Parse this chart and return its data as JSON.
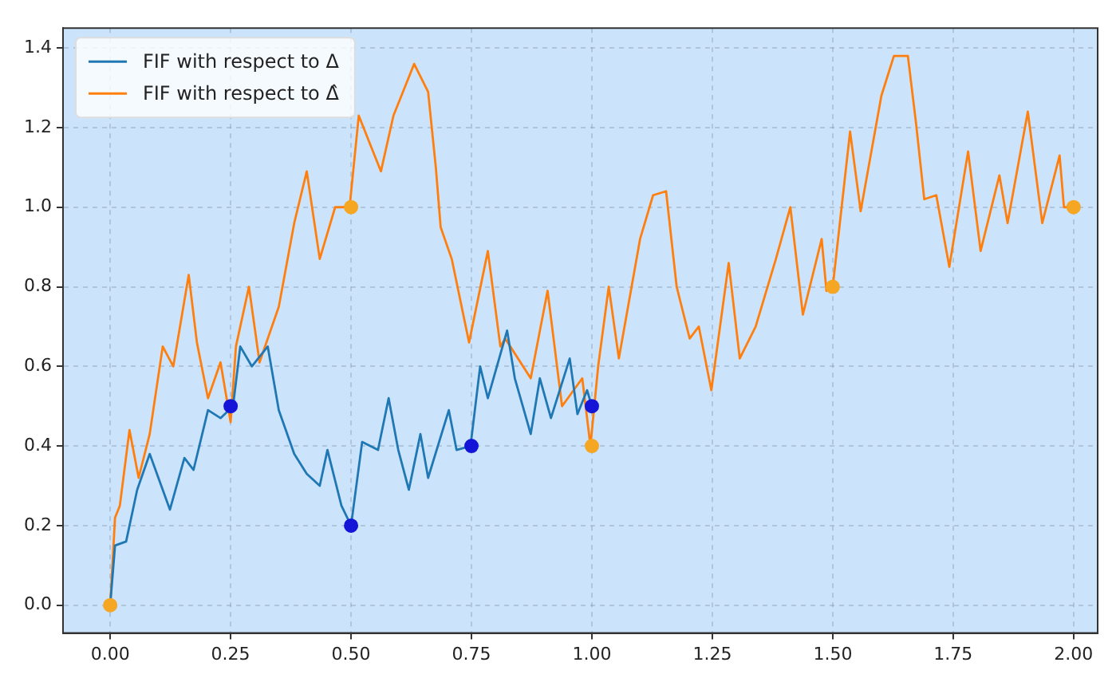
{
  "chart_data": {
    "type": "line",
    "series": [
      {
        "name": "FIF with respect to Δ",
        "marker": "none",
        "color": "#1f77b4",
        "x": [
          0,
          0.01,
          0.033,
          0.056,
          0.082,
          0.124,
          0.154,
          0.173,
          0.203,
          0.229,
          0.255,
          0.27,
          0.294,
          0.327,
          0.35,
          0.382,
          0.408,
          0.435,
          0.451,
          0.48,
          0.5,
          0.523,
          0.556,
          0.578,
          0.598,
          0.62,
          0.644,
          0.66,
          0.703,
          0.719,
          0.748,
          0.768,
          0.784,
          0.824,
          0.84,
          0.873,
          0.892,
          0.915,
          0.954,
          0.97,
          0.99,
          1.0
        ],
        "values": [
          0,
          0.15,
          0.16,
          0.29,
          0.38,
          0.24,
          0.37,
          0.34,
          0.49,
          0.47,
          0.5,
          0.65,
          0.6,
          0.65,
          0.49,
          0.38,
          0.33,
          0.3,
          0.39,
          0.25,
          0.2,
          0.41,
          0.39,
          0.52,
          0.39,
          0.29,
          0.43,
          0.32,
          0.49,
          0.39,
          0.4,
          0.6,
          0.52,
          0.69,
          0.57,
          0.43,
          0.57,
          0.47,
          0.62,
          0.48,
          0.54,
          0.5
        ]
      },
      {
        "name": "FIF with respect to Δ̂",
        "marker": "none",
        "color": "#ff7f0e",
        "x": [
          0,
          0.01,
          0.02,
          0.04,
          0.059,
          0.082,
          0.109,
          0.131,
          0.163,
          0.18,
          0.203,
          0.229,
          0.25,
          0.261,
          0.288,
          0.31,
          0.35,
          0.382,
          0.408,
          0.435,
          0.467,
          0.497,
          0.516,
          0.562,
          0.588,
          0.631,
          0.66,
          0.676,
          0.686,
          0.709,
          0.745,
          0.784,
          0.81,
          0.82,
          0.873,
          0.908,
          0.938,
          0.98,
          0.997,
          1.013,
          1.035,
          1.056,
          1.1,
          1.127,
          1.154,
          1.176,
          1.203,
          1.222,
          1.248,
          1.284,
          1.307,
          1.34,
          1.382,
          1.412,
          1.438,
          1.477,
          1.487,
          1.5,
          1.536,
          1.558,
          1.601,
          1.627,
          1.656,
          1.673,
          1.69,
          1.715,
          1.742,
          1.781,
          1.807,
          1.846,
          1.863,
          1.905,
          1.935,
          1.971,
          1.98,
          2.0
        ],
        "values": [
          0,
          0.22,
          0.25,
          0.44,
          0.32,
          0.43,
          0.65,
          0.6,
          0.83,
          0.66,
          0.52,
          0.61,
          0.46,
          0.65,
          0.8,
          0.61,
          0.75,
          0.96,
          1.09,
          0.87,
          1.0,
          1.0,
          1.23,
          1.09,
          1.23,
          1.36,
          1.29,
          1.1,
          0.95,
          0.87,
          0.66,
          0.89,
          0.65,
          0.67,
          0.57,
          0.79,
          0.5,
          0.57,
          0.4,
          0.6,
          0.8,
          0.62,
          0.92,
          1.03,
          1.04,
          0.8,
          0.67,
          0.7,
          0.54,
          0.86,
          0.62,
          0.7,
          0.87,
          1.0,
          0.73,
          0.92,
          0.79,
          0.8,
          1.19,
          0.99,
          1.28,
          1.38,
          1.38,
          1.21,
          1.02,
          1.03,
          0.85,
          1.14,
          0.89,
          1.08,
          0.96,
          1.24,
          0.96,
          1.13,
          1.0,
          1.0
        ]
      },
      {
        "type": "scatter",
        "marker": "circle",
        "color": "#1515d8",
        "x": [
          0.25,
          0.5,
          0.75,
          1.0
        ],
        "values": [
          0.5,
          0.2,
          0.4,
          0.5
        ]
      },
      {
        "type": "scatter",
        "marker": "circle",
        "color": "#f5a623",
        "x": [
          0,
          0.5,
          1.0,
          1.5,
          2.0
        ],
        "values": [
          0,
          1.0,
          0.4,
          0.8,
          1.0
        ]
      }
    ],
    "xlim": [
      -0.098,
      2.05
    ],
    "ylim": [
      -0.07,
      1.45
    ],
    "xticks": [
      {
        "value": 0,
        "label": "0.00"
      },
      {
        "value": 0.25,
        "label": "0.25"
      },
      {
        "value": 0.5,
        "label": "0.50"
      },
      {
        "value": 0.75,
        "label": "0.75"
      },
      {
        "value": 1,
        "label": "1.00"
      },
      {
        "value": 1.25,
        "label": "1.25"
      },
      {
        "value": 1.5,
        "label": "1.50"
      },
      {
        "value": 1.75,
        "label": "1.75"
      },
      {
        "value": 2,
        "label": "2.00"
      }
    ],
    "yticks": [
      {
        "value": 0,
        "label": "0.0"
      },
      {
        "value": 0.2,
        "label": "0.2"
      },
      {
        "value": 0.4,
        "label": "0.4"
      },
      {
        "value": 0.6,
        "label": "0.6"
      },
      {
        "value": 0.8,
        "label": "0.8"
      },
      {
        "value": 1,
        "label": "1.0"
      },
      {
        "value": 1.2,
        "label": "1.2"
      },
      {
        "value": 1.4,
        "label": "1.4"
      }
    ],
    "grid": true,
    "legend": "top left",
    "line_style": "solid"
  }
}
